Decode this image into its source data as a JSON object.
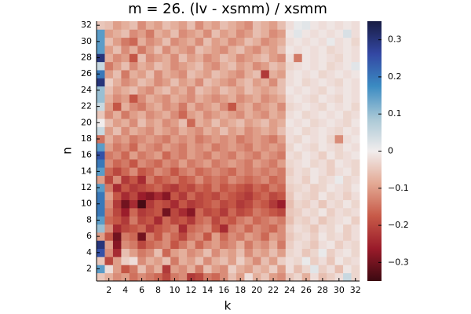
{
  "chart_data": {
    "type": "heatmap",
    "title": "m = 26. (lv - xsmm) / xsmm",
    "xlabel": "k",
    "ylabel": "n",
    "x": [
      1,
      2,
      3,
      4,
      5,
      6,
      7,
      8,
      9,
      10,
      11,
      12,
      13,
      14,
      15,
      16,
      17,
      18,
      19,
      20,
      21,
      22,
      23,
      24,
      25,
      26,
      27,
      28,
      29,
      30,
      31,
      32
    ],
    "y": [
      1,
      2,
      3,
      4,
      5,
      6,
      7,
      8,
      9,
      10,
      11,
      12,
      13,
      14,
      15,
      16,
      17,
      18,
      19,
      20,
      21,
      22,
      23,
      24,
      25,
      26,
      27,
      28,
      29,
      30,
      31,
      32
    ],
    "xlim": [
      0.5,
      32.5
    ],
    "ylim": [
      0.5,
      32.5
    ],
    "xticks": [
      2,
      4,
      6,
      8,
      10,
      12,
      14,
      16,
      18,
      20,
      22,
      24,
      26,
      28,
      30,
      32
    ],
    "yticks": [
      2,
      4,
      6,
      8,
      10,
      12,
      14,
      16,
      18,
      20,
      22,
      24,
      26,
      28,
      30,
      32
    ],
    "clim": [
      -0.35,
      0.35
    ],
    "cticks": [
      {
        "value": -0.3,
        "label": "−0.3"
      },
      {
        "value": -0.2,
        "label": "−0.2"
      },
      {
        "value": -0.1,
        "label": "−0.1"
      },
      0,
      0.1,
      0.2,
      0.3
    ],
    "colormap": [
      "#3c0911",
      "#9a1b2a",
      "#c75a48",
      "#e3a994",
      "#f1eded",
      "#a9c8d6",
      "#3b8bc2",
      "#3347a3",
      "#181c43"
    ],
    "z": [
      [
        -0.05,
        -0.08,
        -0.12,
        -0.1,
        -0.15,
        -0.12,
        -0.14,
        -0.16,
        -0.2,
        -0.14,
        -0.12,
        -0.22,
        -0.2,
        -0.14,
        -0.16,
        -0.12,
        -0.06,
        -0.1,
        -0.02,
        -0.08,
        -0.05,
        -0.1,
        -0.12,
        -0.05,
        -0.03,
        -0.08,
        -0.02,
        -0.06,
        -0.04,
        -0.02,
        0.05,
        -0.03
      ],
      [
        0.15,
        -0.02,
        -0.1,
        -0.18,
        -0.14,
        -0.06,
        -0.12,
        -0.08,
        -0.22,
        -0.1,
        -0.12,
        -0.08,
        -0.14,
        -0.06,
        -0.1,
        -0.12,
        -0.04,
        -0.08,
        -0.1,
        -0.06,
        -0.08,
        -0.04,
        -0.1,
        -0.02,
        -0.06,
        -0.03,
        0.02,
        -0.04,
        -0.02,
        -0.06,
        -0.01,
        -0.03
      ],
      [
        -0.05,
        -0.2,
        -0.1,
        -0.04,
        -0.02,
        -0.12,
        -0.08,
        -0.1,
        -0.06,
        -0.14,
        -0.08,
        -0.1,
        -0.06,
        -0.12,
        -0.08,
        -0.06,
        -0.1,
        -0.04,
        -0.08,
        -0.12,
        -0.06,
        -0.1,
        -0.04,
        -0.02,
        -0.03,
        0.01,
        -0.04,
        -0.02,
        -0.05,
        -0.01,
        -0.03,
        -0.02
      ],
      [
        0.25,
        -0.12,
        -0.24,
        -0.06,
        -0.1,
        -0.14,
        -0.12,
        -0.06,
        -0.16,
        -0.1,
        -0.08,
        -0.12,
        -0.1,
        -0.06,
        -0.12,
        -0.08,
        -0.1,
        -0.06,
        -0.12,
        -0.08,
        -0.1,
        -0.06,
        -0.1,
        -0.03,
        -0.02,
        -0.05,
        -0.03,
        0.01,
        -0.04,
        -0.02,
        -0.01,
        -0.03
      ],
      [
        0.3,
        -0.1,
        -0.28,
        -0.12,
        -0.14,
        -0.2,
        -0.16,
        -0.14,
        -0.12,
        -0.18,
        -0.14,
        -0.1,
        -0.16,
        -0.12,
        -0.1,
        -0.14,
        -0.12,
        -0.08,
        -0.14,
        -0.1,
        -0.12,
        -0.08,
        -0.14,
        -0.04,
        -0.02,
        -0.03,
        -0.05,
        -0.02,
        -0.01,
        -0.04,
        -0.02,
        -0.03
      ],
      [
        -0.1,
        -0.18,
        -0.3,
        -0.14,
        -0.16,
        -0.3,
        -0.14,
        -0.18,
        -0.12,
        -0.16,
        -0.2,
        -0.14,
        -0.12,
        -0.18,
        -0.1,
        -0.16,
        -0.12,
        -0.14,
        -0.1,
        -0.12,
        -0.16,
        -0.1,
        -0.12,
        -0.05,
        -0.03,
        -0.02,
        -0.04,
        -0.01,
        -0.03,
        -0.02,
        -0.04,
        -0.02
      ],
      [
        0.1,
        -0.12,
        -0.24,
        -0.2,
        -0.18,
        -0.16,
        -0.22,
        -0.18,
        -0.16,
        -0.14,
        -0.24,
        -0.16,
        -0.14,
        -0.12,
        -0.18,
        -0.24,
        -0.14,
        -0.12,
        -0.16,
        -0.12,
        -0.14,
        -0.16,
        -0.12,
        -0.04,
        -0.02,
        -0.03,
        -0.05,
        -0.02,
        -0.03,
        -0.01,
        -0.04,
        -0.02
      ],
      [
        0.15,
        -0.16,
        -0.18,
        -0.22,
        -0.14,
        -0.2,
        -0.18,
        -0.24,
        -0.16,
        -0.2,
        -0.18,
        -0.22,
        -0.16,
        -0.14,
        -0.2,
        -0.16,
        -0.18,
        -0.14,
        -0.12,
        -0.16,
        -0.14,
        -0.12,
        -0.14,
        -0.06,
        -0.03,
        -0.04,
        -0.02,
        -0.05,
        -0.03,
        -0.02,
        -0.01,
        -0.04
      ],
      [
        0.2,
        -0.14,
        -0.2,
        -0.26,
        -0.16,
        -0.22,
        -0.2,
        -0.18,
        -0.3,
        -0.2,
        -0.24,
        -0.28,
        -0.16,
        -0.2,
        -0.18,
        -0.22,
        -0.16,
        -0.2,
        -0.18,
        -0.14,
        -0.16,
        -0.18,
        -0.2,
        -0.05,
        -0.04,
        -0.02,
        -0.03,
        -0.01,
        -0.04,
        -0.02,
        -0.03,
        -0.02
      ],
      [
        0.2,
        -0.12,
        -0.22,
        -0.3,
        -0.24,
        -0.34,
        -0.22,
        -0.18,
        -0.2,
        -0.24,
        -0.18,
        -0.22,
        -0.2,
        -0.18,
        -0.16,
        -0.2,
        -0.18,
        -0.22,
        -0.2,
        -0.16,
        -0.18,
        -0.22,
        -0.26,
        -0.06,
        -0.03,
        -0.04,
        -0.02,
        -0.05,
        -0.02,
        -0.03,
        -0.01,
        -0.03
      ],
      [
        0.2,
        -0.1,
        -0.18,
        -0.24,
        -0.2,
        -0.26,
        -0.28,
        -0.24,
        -0.28,
        -0.18,
        -0.22,
        -0.16,
        -0.2,
        -0.18,
        -0.2,
        -0.16,
        -0.18,
        -0.2,
        -0.22,
        -0.18,
        -0.16,
        -0.2,
        -0.18,
        -0.05,
        -0.02,
        -0.03,
        -0.04,
        -0.01,
        -0.03,
        -0.02,
        -0.04,
        -0.02
      ],
      [
        0.15,
        -0.14,
        -0.24,
        -0.18,
        -0.22,
        -0.2,
        -0.18,
        -0.16,
        -0.2,
        -0.22,
        -0.18,
        -0.2,
        -0.16,
        -0.18,
        -0.14,
        -0.18,
        -0.16,
        -0.18,
        -0.2,
        -0.16,
        -0.18,
        -0.14,
        -0.16,
        -0.04,
        -0.03,
        -0.02,
        -0.04,
        -0.03,
        -0.01,
        -0.02,
        -0.03,
        -0.01
      ],
      [
        -0.1,
        -0.2,
        -0.12,
        -0.22,
        -0.18,
        -0.24,
        -0.14,
        -0.18,
        -0.16,
        -0.14,
        -0.18,
        -0.16,
        -0.12,
        -0.16,
        -0.14,
        -0.16,
        -0.12,
        -0.14,
        -0.16,
        -0.14,
        -0.12,
        -0.16,
        -0.14,
        -0.03,
        -0.02,
        -0.04,
        -0.01,
        -0.03,
        -0.02,
        0.01,
        -0.03,
        -0.02
      ],
      [
        0.15,
        -0.16,
        -0.2,
        -0.16,
        -0.12,
        -0.18,
        -0.16,
        -0.12,
        -0.14,
        -0.18,
        -0.14,
        -0.12,
        -0.16,
        -0.14,
        -0.12,
        -0.14,
        -0.16,
        -0.12,
        -0.14,
        -0.12,
        -0.14,
        -0.12,
        -0.14,
        -0.04,
        -0.02,
        -0.03,
        -0.01,
        -0.02,
        -0.04,
        -0.02,
        -0.01,
        -0.03
      ],
      [
        0.2,
        -0.12,
        -0.16,
        -0.14,
        -0.18,
        -0.12,
        -0.14,
        -0.16,
        -0.12,
        -0.14,
        -0.1,
        -0.14,
        -0.12,
        -0.1,
        -0.14,
        -0.12,
        -0.1,
        -0.12,
        -0.14,
        -0.1,
        -0.12,
        -0.14,
        -0.1,
        -0.03,
        -0.02,
        -0.01,
        -0.03,
        -0.02,
        -0.04,
        -0.01,
        -0.02,
        -0.03
      ],
      [
        0.25,
        -0.14,
        -0.12,
        -0.16,
        -0.1,
        -0.14,
        -0.12,
        -0.1,
        -0.16,
        -0.12,
        -0.14,
        -0.1,
        -0.12,
        -0.14,
        -0.1,
        -0.12,
        -0.14,
        -0.1,
        -0.12,
        -0.14,
        -0.1,
        -0.12,
        -0.14,
        -0.02,
        -0.03,
        -0.01,
        -0.02,
        -0.04,
        -0.01,
        -0.03,
        -0.02,
        -0.01
      ],
      [
        0.15,
        -0.1,
        -0.14,
        -0.12,
        -0.16,
        -0.1,
        -0.12,
        -0.14,
        -0.1,
        -0.12,
        -0.14,
        -0.1,
        -0.12,
        -0.1,
        -0.14,
        -0.12,
        -0.1,
        -0.12,
        -0.14,
        -0.1,
        -0.12,
        -0.1,
        -0.12,
        -0.03,
        -0.01,
        -0.02,
        -0.03,
        -0.01,
        -0.02,
        -0.03,
        -0.01,
        -0.02
      ],
      [
        -0.15,
        -0.08,
        -0.12,
        -0.1,
        -0.14,
        -0.12,
        -0.1,
        -0.12,
        -0.14,
        -0.1,
        -0.12,
        -0.1,
        -0.14,
        -0.12,
        -0.1,
        -0.12,
        -0.1,
        -0.14,
        -0.12,
        -0.1,
        -0.12,
        -0.14,
        -0.1,
        -0.02,
        -0.03,
        -0.01,
        -0.02,
        -0.01,
        -0.03,
        -0.12,
        -0.02,
        -0.01
      ],
      [
        0.05,
        -0.1,
        -0.06,
        -0.12,
        -0.08,
        -0.1,
        -0.12,
        -0.08,
        -0.1,
        -0.12,
        -0.08,
        -0.1,
        -0.12,
        -0.08,
        -0.1,
        -0.06,
        -0.1,
        -0.08,
        -0.12,
        -0.1,
        -0.08,
        -0.1,
        -0.06,
        -0.02,
        -0.01,
        -0.03,
        -0.02,
        -0.01,
        -0.02,
        -0.03,
        -0.01,
        -0.02
      ],
      [
        0.0,
        -0.06,
        -0.1,
        -0.08,
        -0.12,
        -0.06,
        -0.1,
        -0.08,
        -0.12,
        -0.1,
        -0.06,
        -0.16,
        -0.08,
        -0.1,
        -0.06,
        -0.1,
        -0.08,
        -0.06,
        -0.1,
        -0.08,
        -0.06,
        -0.1,
        -0.08,
        -0.01,
        -0.02,
        -0.01,
        -0.03,
        -0.02,
        -0.01,
        -0.02,
        -0.03,
        -0.01
      ],
      [
        -0.05,
        -0.12,
        -0.08,
        -0.14,
        -0.1,
        -0.08,
        -0.12,
        -0.1,
        -0.08,
        -0.12,
        -0.16,
        -0.1,
        -0.08,
        -0.12,
        -0.1,
        -0.08,
        -0.1,
        -0.12,
        -0.08,
        -0.1,
        -0.12,
        -0.08,
        -0.1,
        -0.02,
        -0.01,
        -0.03,
        -0.02,
        -0.01,
        -0.02,
        -0.01,
        -0.03,
        -0.02
      ],
      [
        0.05,
        -0.1,
        -0.18,
        -0.08,
        -0.12,
        -0.14,
        -0.1,
        -0.08,
        -0.12,
        -0.1,
        -0.14,
        -0.08,
        -0.12,
        -0.1,
        -0.08,
        -0.12,
        -0.18,
        -0.1,
        -0.08,
        -0.12,
        -0.1,
        -0.08,
        -0.12,
        -0.03,
        -0.02,
        -0.01,
        -0.02,
        -0.03,
        -0.01,
        -0.02,
        -0.01,
        -0.03
      ],
      [
        0.1,
        -0.08,
        -0.12,
        -0.1,
        -0.18,
        -0.12,
        -0.08,
        -0.1,
        -0.12,
        -0.08,
        -0.1,
        -0.12,
        -0.08,
        -0.1,
        -0.12,
        -0.1,
        -0.08,
        -0.12,
        -0.1,
        -0.08,
        -0.12,
        -0.1,
        -0.08,
        -0.02,
        -0.01,
        -0.02,
        -0.03,
        -0.01,
        -0.02,
        -0.03,
        -0.01,
        -0.02
      ],
      [
        0.1,
        -0.06,
        -0.1,
        -0.08,
        -0.06,
        -0.1,
        -0.12,
        -0.08,
        -0.06,
        -0.1,
        -0.08,
        -0.12,
        -0.06,
        -0.08,
        -0.1,
        -0.06,
        -0.08,
        -0.1,
        -0.06,
        -0.08,
        -0.1,
        -0.08,
        -0.06,
        -0.01,
        -0.02,
        -0.01,
        -0.02,
        -0.03,
        -0.01,
        -0.02,
        -0.01,
        -0.02
      ],
      [
        0.3,
        -0.04,
        -0.08,
        -0.12,
        -0.1,
        -0.06,
        -0.08,
        -0.12,
        -0.1,
        -0.06,
        -0.1,
        -0.08,
        -0.12,
        -0.06,
        -0.08,
        -0.1,
        -0.12,
        -0.08,
        -0.06,
        -0.1,
        -0.08,
        -0.12,
        -0.06,
        -0.02,
        -0.01,
        -0.03,
        -0.02,
        -0.01,
        -0.02,
        -0.03,
        -0.01,
        -0.02
      ],
      [
        0.2,
        -0.1,
        -0.06,
        -0.14,
        -0.08,
        -0.1,
        -0.06,
        -0.12,
        -0.08,
        -0.1,
        -0.12,
        -0.06,
        -0.08,
        -0.1,
        -0.06,
        -0.08,
        -0.1,
        -0.12,
        -0.08,
        -0.06,
        -0.22,
        -0.08,
        -0.1,
        -0.02,
        -0.01,
        -0.02,
        -0.01,
        -0.03,
        -0.02,
        -0.01,
        -0.02,
        -0.01
      ],
      [
        0.05,
        -0.14,
        -0.1,
        -0.06,
        -0.12,
        -0.08,
        -0.1,
        -0.06,
        -0.08,
        -0.12,
        -0.1,
        -0.08,
        -0.06,
        -0.1,
        -0.12,
        -0.08,
        -0.06,
        -0.1,
        -0.08,
        -0.12,
        -0.1,
        -0.06,
        -0.08,
        -0.03,
        -0.02,
        -0.01,
        -0.02,
        -0.01,
        -0.03,
        -0.02,
        -0.01,
        0.02
      ],
      [
        0.3,
        -0.08,
        -0.12,
        -0.1,
        -0.18,
        -0.06,
        -0.12,
        -0.1,
        -0.08,
        -0.12,
        -0.06,
        -0.1,
        -0.08,
        -0.12,
        -0.1,
        -0.06,
        -0.08,
        -0.12,
        -0.1,
        -0.08,
        -0.06,
        -0.1,
        -0.12,
        -0.02,
        -0.14,
        -0.01,
        -0.02,
        -0.01,
        -0.02,
        -0.03,
        -0.01,
        -0.02
      ],
      [
        0.15,
        -0.1,
        -0.06,
        -0.12,
        -0.08,
        -0.14,
        -0.1,
        -0.06,
        -0.12,
        -0.08,
        -0.1,
        -0.12,
        -0.06,
        -0.08,
        -0.1,
        -0.12,
        -0.08,
        -0.06,
        -0.1,
        -0.12,
        -0.08,
        -0.1,
        -0.06,
        -0.01,
        -0.02,
        -0.01,
        -0.02,
        -0.01,
        -0.03,
        -0.02,
        -0.01,
        -0.02
      ],
      [
        0.15,
        -0.06,
        -0.1,
        -0.14,
        -0.16,
        -0.08,
        -0.12,
        -0.1,
        -0.06,
        -0.12,
        -0.1,
        -0.08,
        -0.12,
        -0.06,
        -0.1,
        -0.08,
        -0.12,
        -0.1,
        -0.06,
        -0.08,
        -0.12,
        -0.1,
        -0.08,
        -0.02,
        -0.01,
        -0.02,
        -0.01,
        -0.02,
        0.01,
        -0.02,
        -0.01,
        -0.03
      ],
      [
        0.15,
        -0.1,
        -0.08,
        -0.06,
        -0.12,
        -0.1,
        -0.14,
        -0.08,
        -0.1,
        -0.06,
        -0.12,
        -0.1,
        -0.08,
        -0.12,
        -0.06,
        -0.1,
        -0.08,
        -0.12,
        -0.1,
        -0.06,
        -0.08,
        -0.12,
        -0.1,
        -0.01,
        0.02,
        -0.01,
        -0.02,
        -0.01,
        -0.02,
        -0.01,
        0.03,
        -0.02
      ],
      [
        -0.05,
        -0.06,
        -0.1,
        -0.08,
        -0.06,
        -0.12,
        -0.08,
        -0.1,
        -0.06,
        -0.08,
        -0.1,
        -0.06,
        -0.12,
        -0.08,
        -0.1,
        -0.06,
        -0.08,
        -0.1,
        -0.12,
        -0.06,
        -0.08,
        -0.1,
        -0.06,
        -0.02,
        0.01,
        0.02,
        -0.01,
        -0.02,
        -0.01,
        -0.02,
        -0.01,
        -0.02
      ]
    ]
  }
}
